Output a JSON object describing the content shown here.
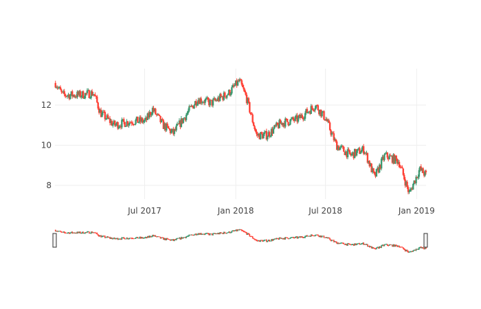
{
  "chart_data": {
    "type": "candlestick",
    "title": "",
    "xlabel": "",
    "ylabel": "",
    "x_tick_labels": [
      "Jul 2017",
      "Jan 2018",
      "Jul 2018",
      "Jan 2019"
    ],
    "y_tick_labels": [
      "8",
      "10",
      "12"
    ],
    "y_ticks": [
      8,
      10,
      12
    ],
    "ylim": [
      7.2,
      13.6
    ],
    "xlim": [
      "2017-01-01",
      "2019-01-20"
    ],
    "grid": true,
    "rangeslider": true,
    "colors": {
      "increasing": "#3D9970",
      "decreasing": "#FF4136",
      "grid": "#eeeeee",
      "tick_text": "#444444"
    },
    "anchors": [
      {
        "date": "2017-01-02",
        "price": 13.1
      },
      {
        "date": "2017-01-16",
        "price": 12.5
      },
      {
        "date": "2017-02-20",
        "price": 12.5
      },
      {
        "date": "2017-03-20",
        "price": 12.6
      },
      {
        "date": "2017-04-03",
        "price": 11.6
      },
      {
        "date": "2017-05-01",
        "price": 11.0
      },
      {
        "date": "2017-06-05",
        "price": 11.2
      },
      {
        "date": "2017-07-03",
        "price": 11.2
      },
      {
        "date": "2017-07-17",
        "price": 11.8
      },
      {
        "date": "2017-08-07",
        "price": 11.0
      },
      {
        "date": "2017-08-28",
        "price": 10.6
      },
      {
        "date": "2017-09-25",
        "price": 11.6
      },
      {
        "date": "2017-10-16",
        "price": 12.3
      },
      {
        "date": "2017-11-13",
        "price": 12.1
      },
      {
        "date": "2017-12-18",
        "price": 12.6
      },
      {
        "date": "2018-01-08",
        "price": 13.2
      },
      {
        "date": "2018-01-22",
        "price": 12.4
      },
      {
        "date": "2018-02-12",
        "price": 10.5
      },
      {
        "date": "2018-03-05",
        "price": 10.5
      },
      {
        "date": "2018-04-02",
        "price": 11.1
      },
      {
        "date": "2018-05-07",
        "price": 11.3
      },
      {
        "date": "2018-06-11",
        "price": 12.0
      },
      {
        "date": "2018-07-02",
        "price": 11.3
      },
      {
        "date": "2018-07-23",
        "price": 10.0
      },
      {
        "date": "2018-08-20",
        "price": 9.5
      },
      {
        "date": "2018-09-17",
        "price": 9.8
      },
      {
        "date": "2018-10-08",
        "price": 8.4
      },
      {
        "date": "2018-10-29",
        "price": 9.5
      },
      {
        "date": "2018-11-26",
        "price": 9.2
      },
      {
        "date": "2018-12-17",
        "price": 7.6
      },
      {
        "date": "2019-01-07",
        "price": 8.8
      },
      {
        "date": "2019-01-21",
        "price": 8.5
      }
    ]
  },
  "rangeslider": {
    "left_handle": "range-handle-left",
    "right_handle": "range-handle-right"
  }
}
